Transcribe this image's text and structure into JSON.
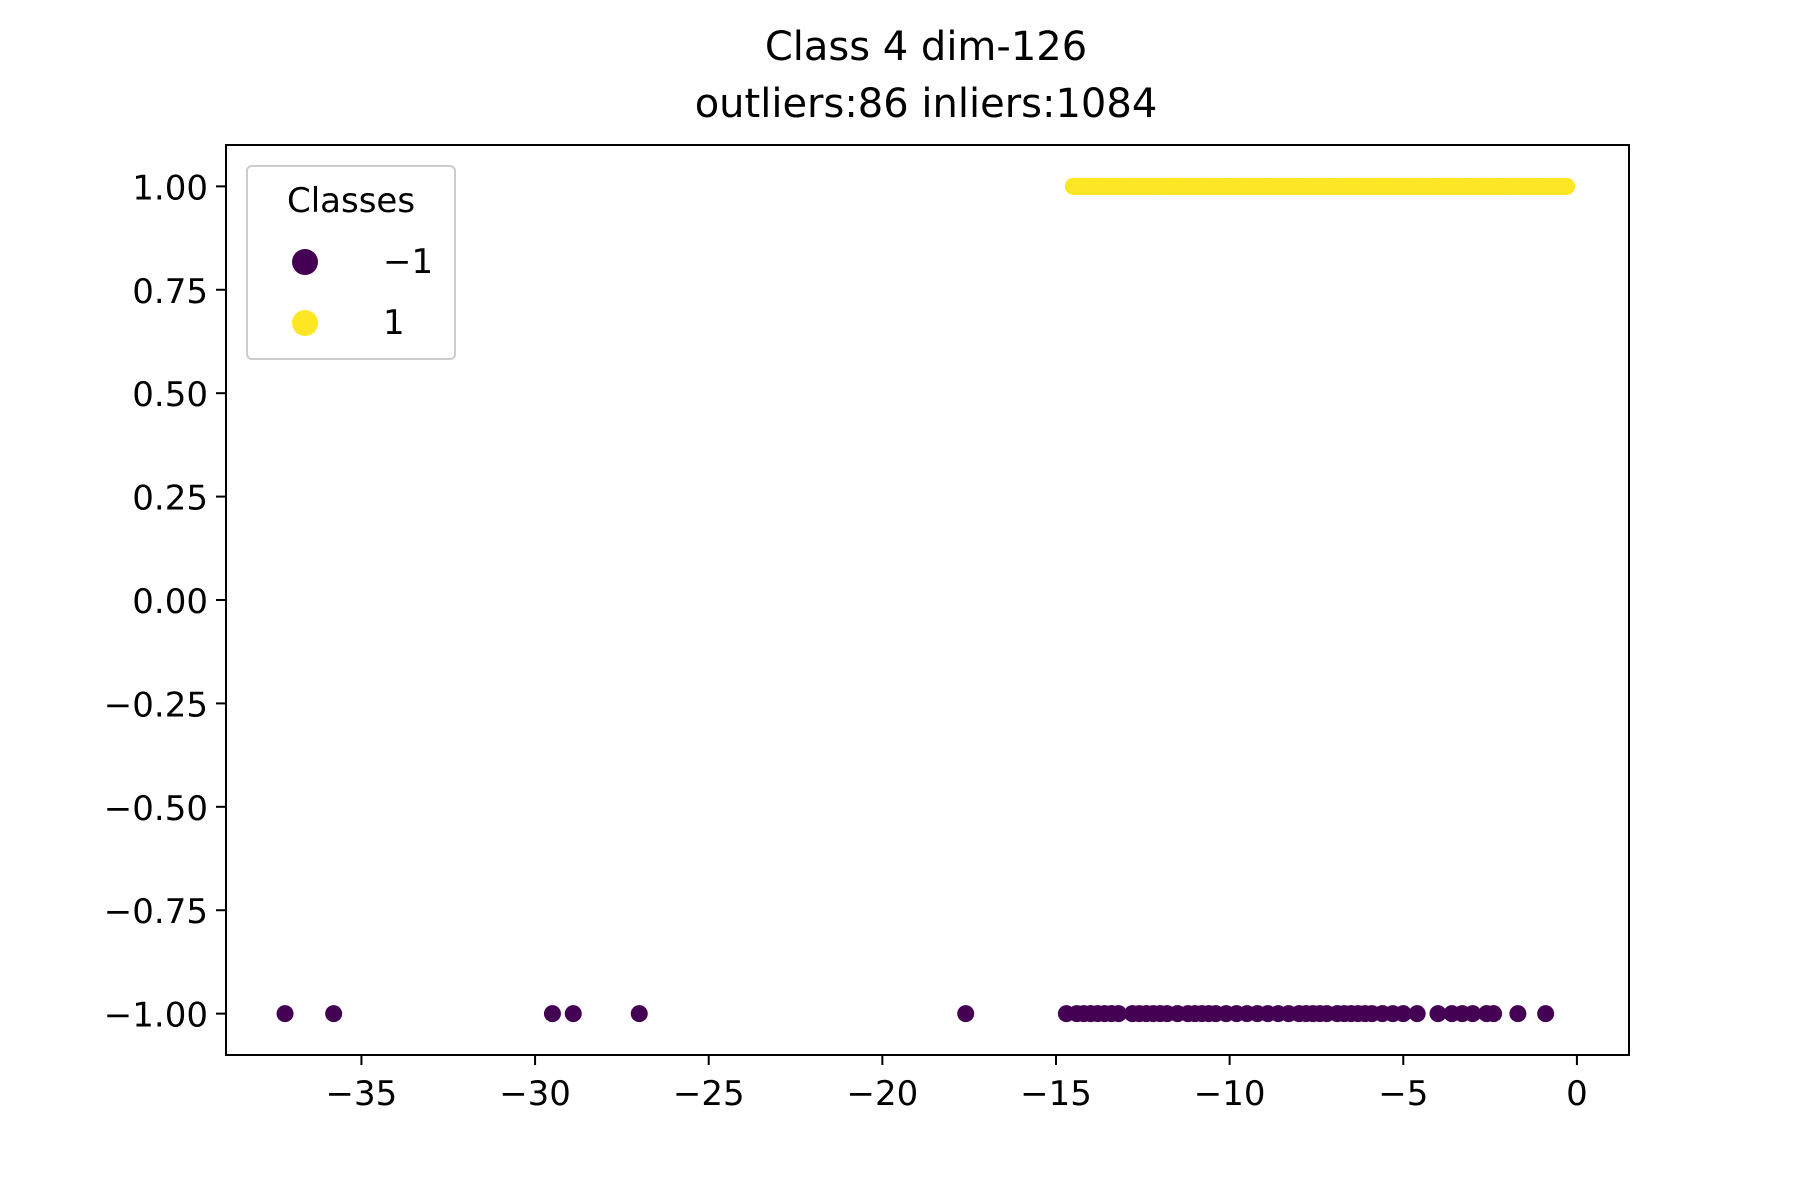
{
  "chart_data": {
    "type": "scatter",
    "title": "Class 4 dim-126",
    "subtitle": "outliers:86  inliers:1084",
    "xlabel": "",
    "ylabel": "",
    "xlim": [
      -38.9,
      1.5
    ],
    "ylim": [
      -1.1,
      1.1
    ],
    "x_ticks": [
      -35,
      -30,
      -25,
      -20,
      -15,
      -10,
      -5,
      0
    ],
    "x_tick_labels": [
      "−35",
      "−30",
      "−25",
      "−20",
      "−15",
      "−10",
      "−5",
      "0"
    ],
    "y_ticks": [
      1.0,
      0.75,
      0.5,
      0.25,
      0.0,
      -0.25,
      -0.5,
      -0.75,
      -1.0
    ],
    "y_tick_labels": [
      "1.00",
      "0.75",
      "0.50",
      "0.25",
      "0.00",
      "−0.25",
      "−0.50",
      "−0.75",
      "−1.00"
    ],
    "grid": false,
    "legend": {
      "title": "Classes",
      "placement": "upper-left",
      "entries": [
        {
          "label": "−1",
          "color": "#440154"
        },
        {
          "label": "1",
          "color": "#fde725"
        }
      ]
    },
    "series": [
      {
        "name": "−1",
        "color": "#440154",
        "y": -1.0,
        "x": [
          -37.2,
          -35.8,
          -29.5,
          -28.9,
          -27.0,
          -17.6,
          -14.7,
          -14.4,
          -14.2,
          -14.0,
          -13.8,
          -13.6,
          -13.4,
          -13.2,
          -12.8,
          -12.6,
          -12.4,
          -12.2,
          -12.0,
          -11.8,
          -11.5,
          -11.2,
          -11.0,
          -10.8,
          -10.6,
          -10.4,
          -10.1,
          -9.8,
          -9.5,
          -9.2,
          -8.9,
          -8.6,
          -8.3,
          -8.0,
          -7.8,
          -7.6,
          -7.4,
          -7.2,
          -6.9,
          -6.7,
          -6.5,
          -6.3,
          -6.1,
          -5.9,
          -5.6,
          -5.3,
          -5.0,
          -4.6,
          -4.0,
          -3.6,
          -3.3,
          -3.0,
          -2.6,
          -2.4,
          -1.7,
          -0.9
        ]
      },
      {
        "name": "1",
        "color": "#fde725",
        "y": 1.0,
        "x_range": [
          -14.5,
          -0.3
        ],
        "x_dense": [
          -14.5,
          -14.3,
          -14.1,
          -13.9,
          -13.7,
          -13.5,
          -13.3,
          -13.1,
          -12.9,
          -12.6,
          -12.3,
          -12.0,
          -11.7,
          -11.4,
          -11.1,
          -10.8,
          -10.5,
          -10.2,
          -9.9,
          -9.6,
          -9.3,
          -9.0,
          -8.7,
          -8.4,
          -8.1,
          -7.8,
          -7.5,
          -7.2,
          -6.9,
          -6.6,
          -6.3,
          -6.0,
          -5.7,
          -5.4,
          -5.1,
          -4.8,
          -4.5,
          -4.2,
          -3.9,
          -3.6,
          -3.3,
          -3.0,
          -2.7,
          -2.4,
          -2.1,
          -1.8,
          -1.5,
          -1.2,
          -0.9,
          -0.6,
          -0.3
        ]
      }
    ]
  }
}
